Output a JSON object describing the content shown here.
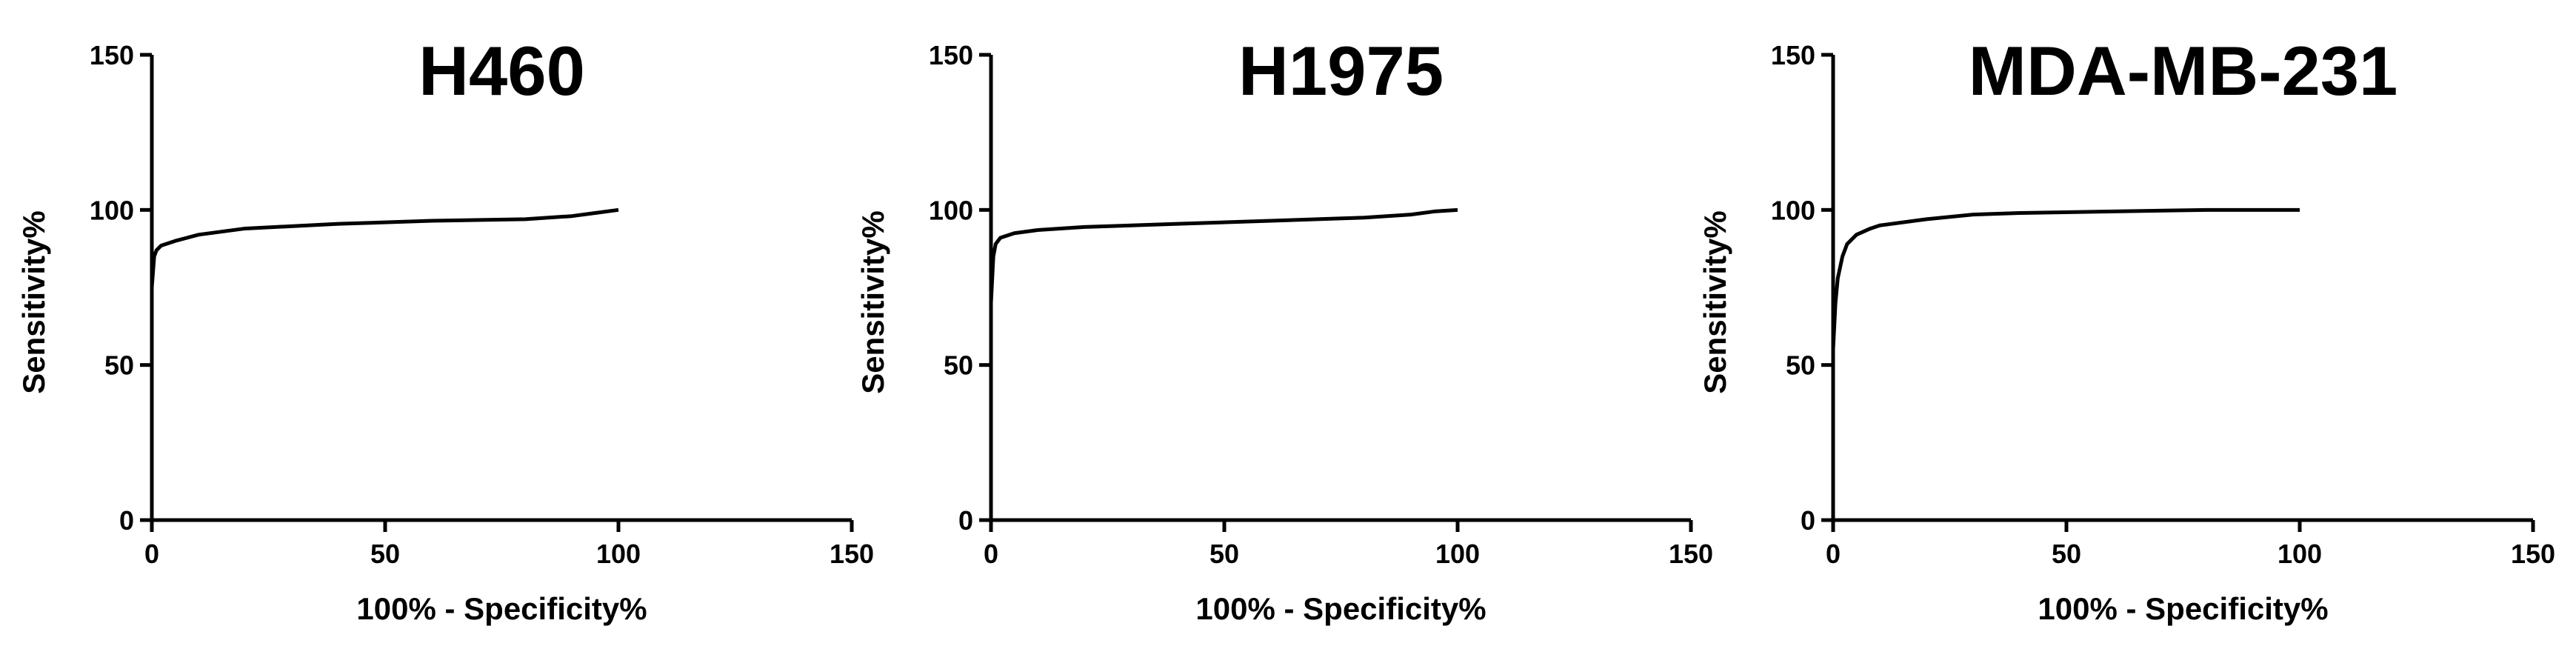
{
  "chart_data": [
    {
      "type": "line",
      "title": "H460",
      "xlabel": "100% - Specificity%",
      "ylabel": "Sensitivity%",
      "x": [
        0,
        0.5,
        1,
        2,
        5,
        10,
        20,
        40,
        60,
        80,
        90,
        95,
        100
      ],
      "values": [
        75,
        85,
        87,
        88.5,
        90,
        92,
        94,
        95.5,
        96.5,
        97,
        98,
        99,
        100
      ],
      "color": "#000000",
      "xlim": [
        0,
        150
      ],
      "ylim": [
        0,
        150
      ],
      "xticks": [
        0,
        50,
        100,
        150
      ],
      "yticks": [
        0,
        50,
        100,
        150
      ]
    },
    {
      "type": "line",
      "title": "H1975",
      "xlabel": "100% - Specificity%",
      "ylabel": "Sensitivity%",
      "x": [
        0,
        0.5,
        1,
        2,
        5,
        10,
        20,
        40,
        60,
        80,
        90,
        95,
        100
      ],
      "values": [
        70,
        85,
        89,
        91,
        92.5,
        93.5,
        94.5,
        95.5,
        96.5,
        97.5,
        98.5,
        99.5,
        100
      ],
      "color": "#000000",
      "xlim": [
        0,
        150
      ],
      "ylim": [
        0,
        150
      ],
      "xticks": [
        0,
        50,
        100,
        150
      ],
      "yticks": [
        0,
        50,
        100,
        150
      ]
    },
    {
      "type": "line",
      "title": "MDA-MB-231",
      "xlabel": "100% - Specificity%",
      "ylabel": "Sensitivity%",
      "x": [
        0,
        0.5,
        1,
        2,
        3,
        5,
        8,
        10,
        20,
        30,
        40,
        60,
        80,
        100
      ],
      "values": [
        55,
        70,
        78,
        85,
        89,
        92,
        94,
        95,
        97,
        98.5,
        99,
        99.5,
        100,
        100
      ],
      "color": "#000000",
      "xlim": [
        0,
        150
      ],
      "ylim": [
        0,
        150
      ],
      "xticks": [
        0,
        50,
        100,
        150
      ],
      "yticks": [
        0,
        50,
        100,
        150
      ]
    }
  ]
}
